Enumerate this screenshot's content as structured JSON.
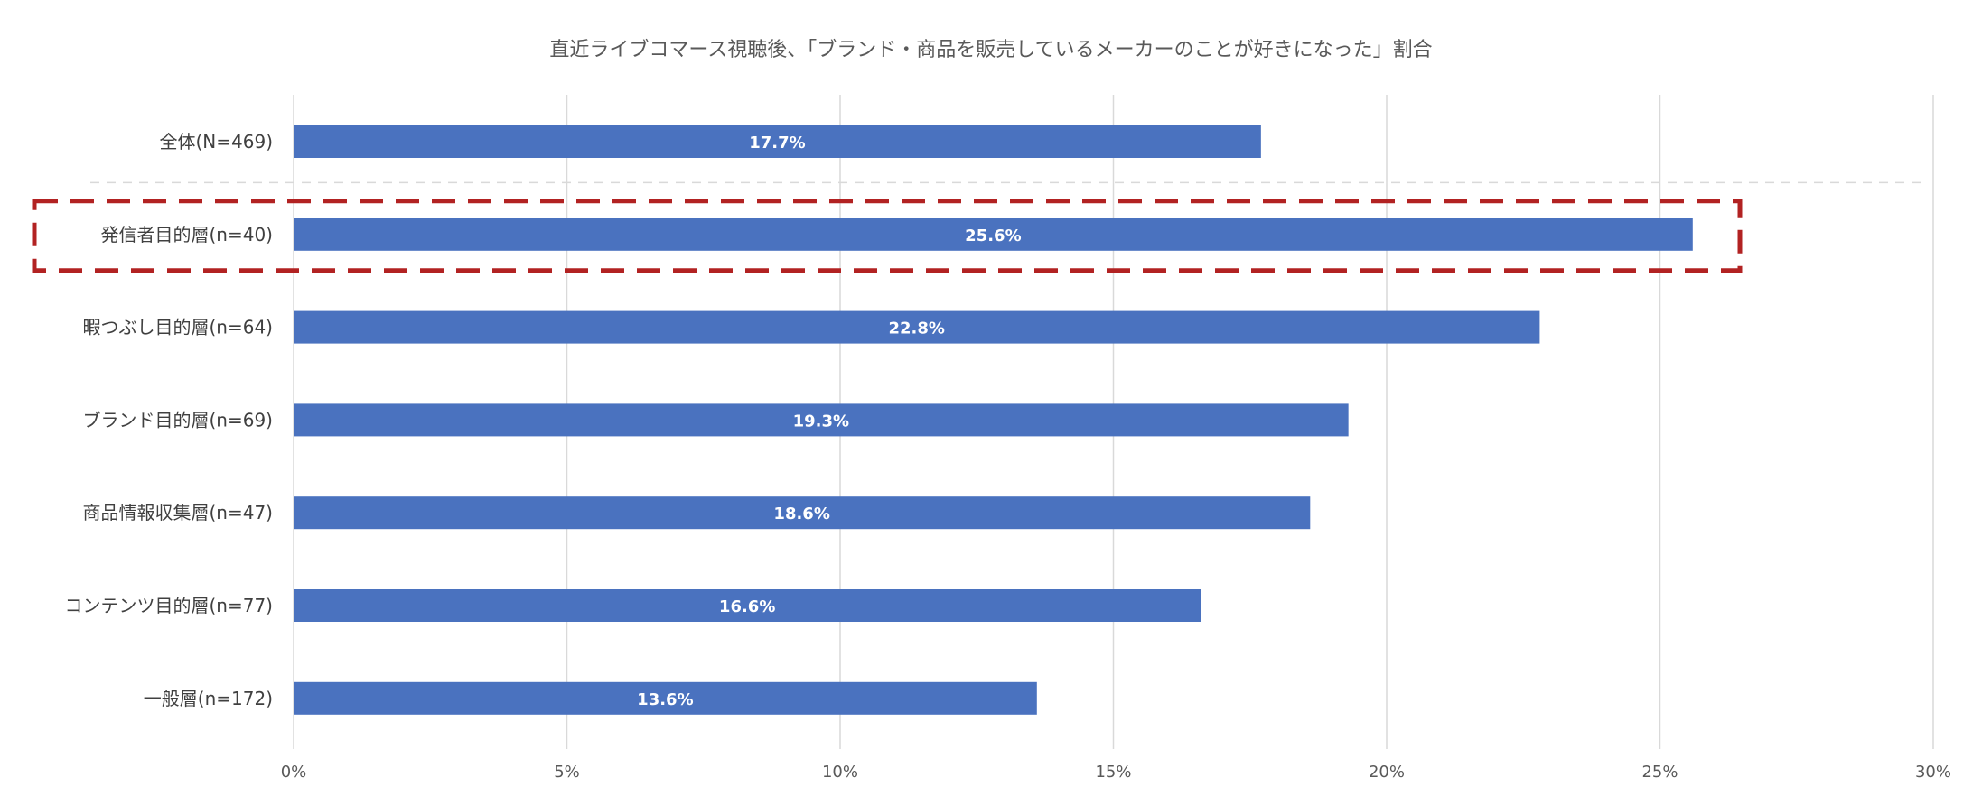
{
  "chart_data": {
    "type": "bar",
    "orientation": "horizontal",
    "title": "直近ライブコマース視聴後、「ブランド・商品を販売しているメーカーのことが好きになった」割合",
    "categories": [
      "全体(N=469)",
      "発信者目的層(n=40)",
      "暇つぶし目的層(n=64)",
      "ブランド目的層(n=69)",
      "商品情報収集層(n=47)",
      "コンテンツ目的層(n=77)",
      "一般層(n=172)"
    ],
    "values": [
      17.7,
      25.6,
      22.8,
      19.3,
      18.6,
      16.6,
      13.6
    ],
    "data_labels": [
      "17.7%",
      "25.6%",
      "22.8%",
      "19.3%",
      "18.6%",
      "16.6%",
      "13.6%"
    ],
    "xlim": [
      0,
      30
    ],
    "x_ticks": [
      0,
      5,
      10,
      15,
      20,
      25,
      30
    ],
    "x_tick_labels": [
      "0%",
      "5%",
      "10%",
      "15%",
      "20%",
      "25%",
      "30%"
    ],
    "grid": true,
    "highlighted_category_index": 1,
    "separator_after_index": 0,
    "bar_color": "#4a72bf",
    "highlight_color": "#b22222"
  }
}
